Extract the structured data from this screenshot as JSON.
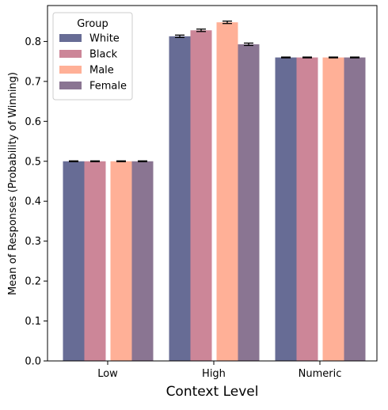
{
  "chart_data": {
    "type": "bar",
    "title": "",
    "xlabel": "Context Level",
    "ylabel": "Mean of Responses (Probability of Winning)",
    "categories": [
      "Low",
      "High",
      "Numeric"
    ],
    "ylim": [
      0,
      0.89
    ],
    "yticks": [
      "0.0",
      "0.1",
      "0.2",
      "0.3",
      "0.4",
      "0.5",
      "0.6",
      "0.7",
      "0.8"
    ],
    "grid": false,
    "legend": {
      "title": "Group",
      "placement": "top-left"
    },
    "series": [
      {
        "name": "White",
        "color": "#676c95",
        "values": [
          0.5,
          0.813,
          0.76
        ],
        "errors": [
          0.001,
          0.003,
          0.001
        ]
      },
      {
        "name": "Black",
        "color": "#cc8698",
        "values": [
          0.5,
          0.828,
          0.76
        ],
        "errors": [
          0.001,
          0.003,
          0.001
        ]
      },
      {
        "name": "Male",
        "color": "#ffb097",
        "values": [
          0.5,
          0.848,
          0.76
        ],
        "errors": [
          0.001,
          0.003,
          0.001
        ]
      },
      {
        "name": "Female",
        "color": "#8a7592",
        "values": [
          0.5,
          0.793,
          0.76
        ],
        "errors": [
          0.001,
          0.003,
          0.001
        ]
      }
    ]
  }
}
